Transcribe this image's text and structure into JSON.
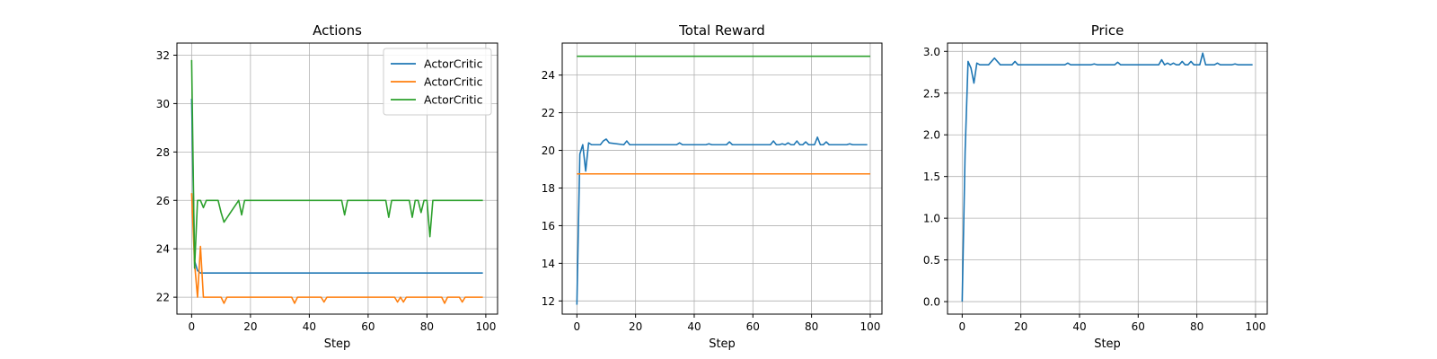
{
  "chart_data": [
    {
      "type": "line",
      "title": "Actions",
      "xlabel": "Step",
      "ylabel": "",
      "xlim": [
        -5,
        104
      ],
      "ylim": [
        21.3,
        32.5
      ],
      "xticks": [
        0,
        20,
        40,
        60,
        80,
        100
      ],
      "yticks": [
        22,
        24,
        26,
        28,
        30,
        32
      ],
      "grid": true,
      "legend": "top-right",
      "series": [
        {
          "name": "ActorCritic",
          "color": "#1f77b4",
          "x": [
            0,
            1,
            2,
            3,
            99
          ],
          "y": [
            30.2,
            23.5,
            23.1,
            23.0,
            23.0
          ]
        },
        {
          "name": "ActorCritic",
          "color": "#ff7f0e",
          "x": [
            0,
            1,
            2,
            3,
            4,
            10,
            11,
            12,
            34,
            35,
            36,
            44,
            45,
            46,
            69,
            70,
            71,
            72,
            73,
            85,
            86,
            87,
            91,
            92,
            93,
            99
          ],
          "y": [
            26.3,
            23.4,
            22.0,
            24.1,
            22.0,
            22.0,
            21.75,
            22.0,
            22.0,
            21.75,
            22.0,
            22.0,
            21.8,
            22.0,
            22.0,
            21.8,
            22.0,
            21.8,
            22.0,
            22.0,
            21.75,
            22.0,
            22.0,
            21.8,
            22.0,
            22.0
          ]
        },
        {
          "name": "ActorCritic",
          "color": "#2ca02c",
          "x": [
            0,
            1,
            2,
            3,
            4,
            5,
            6,
            9,
            10,
            11,
            16,
            17,
            18,
            51,
            52,
            53,
            66,
            67,
            68,
            74,
            75,
            76,
            77,
            78,
            79,
            80,
            81,
            82,
            83,
            99
          ],
          "y": [
            31.8,
            23.2,
            26.0,
            26.0,
            25.7,
            26.0,
            26.0,
            26.0,
            25.5,
            25.1,
            26.0,
            25.4,
            26.0,
            26.0,
            25.4,
            26.0,
            26.0,
            25.3,
            26.0,
            26.0,
            25.3,
            26.0,
            26.0,
            25.5,
            26.0,
            26.0,
            24.5,
            26.0,
            26.0,
            26.0
          ]
        }
      ]
    },
    {
      "type": "line",
      "title": "Total Reward",
      "xlabel": "Step",
      "ylabel": "",
      "xlim": [
        -5,
        104
      ],
      "ylim": [
        11.3,
        25.7
      ],
      "xticks": [
        0,
        20,
        40,
        60,
        80,
        100
      ],
      "yticks": [
        12,
        14,
        16,
        18,
        20,
        22,
        24
      ],
      "grid": true,
      "series": [
        {
          "color": "#1f77b4",
          "x": [
            0,
            1,
            2,
            3,
            4,
            5,
            8,
            9,
            10,
            11,
            16,
            17,
            18,
            34,
            35,
            36,
            44,
            45,
            46,
            51,
            52,
            53,
            66,
            67,
            68,
            69,
            70,
            71,
            72,
            73,
            74,
            75,
            76,
            77,
            78,
            79,
            80,
            81,
            82,
            83,
            84,
            85,
            86,
            92,
            93,
            94,
            99
          ],
          "y": [
            11.8,
            19.8,
            20.3,
            18.9,
            20.4,
            20.3,
            20.3,
            20.5,
            20.6,
            20.4,
            20.3,
            20.5,
            20.3,
            20.3,
            20.4,
            20.3,
            20.3,
            20.35,
            20.3,
            20.3,
            20.45,
            20.3,
            20.3,
            20.5,
            20.3,
            20.3,
            20.35,
            20.3,
            20.4,
            20.3,
            20.3,
            20.5,
            20.3,
            20.3,
            20.45,
            20.3,
            20.3,
            20.3,
            20.7,
            20.3,
            20.3,
            20.45,
            20.3,
            20.3,
            20.35,
            20.3,
            20.3
          ]
        },
        {
          "color": "#ff7f0e",
          "x": [
            0,
            100
          ],
          "y": [
            18.75,
            18.75
          ]
        },
        {
          "color": "#2ca02c",
          "x": [
            0,
            100
          ],
          "y": [
            25.0,
            25.0
          ]
        }
      ]
    },
    {
      "type": "line",
      "title": "Price",
      "xlabel": "Step",
      "ylabel": "",
      "xlim": [
        -5,
        104
      ],
      "ylim": [
        -0.15,
        3.1
      ],
      "xticks": [
        0,
        20,
        40,
        60,
        80,
        100
      ],
      "yticks": [
        0.0,
        0.5,
        1.0,
        1.5,
        2.0,
        2.5,
        3.0
      ],
      "ytick_labels": [
        "0.0",
        "0.5",
        "1.0",
        "1.5",
        "2.0",
        "2.5",
        "3.0"
      ],
      "grid": true,
      "series": [
        {
          "color": "#1f77b4",
          "x": [
            0,
            1,
            2,
            3,
            4,
            5,
            6,
            9,
            10,
            11,
            13,
            17,
            18,
            19,
            35,
            36,
            37,
            44,
            45,
            46,
            52,
            53,
            54,
            67,
            68,
            69,
            70,
            71,
            72,
            73,
            74,
            75,
            76,
            77,
            78,
            79,
            80,
            81,
            82,
            83,
            84,
            86,
            87,
            88,
            92,
            93,
            94,
            99
          ],
          "y": [
            0.0,
            1.8,
            2.88,
            2.8,
            2.62,
            2.86,
            2.84,
            2.84,
            2.88,
            2.92,
            2.84,
            2.84,
            2.88,
            2.84,
            2.84,
            2.86,
            2.84,
            2.84,
            2.85,
            2.84,
            2.84,
            2.87,
            2.84,
            2.84,
            2.9,
            2.84,
            2.86,
            2.84,
            2.86,
            2.84,
            2.84,
            2.88,
            2.84,
            2.84,
            2.88,
            2.84,
            2.84,
            2.84,
            2.98,
            2.84,
            2.84,
            2.84,
            2.86,
            2.84,
            2.84,
            2.85,
            2.84,
            2.84
          ]
        }
      ]
    }
  ]
}
